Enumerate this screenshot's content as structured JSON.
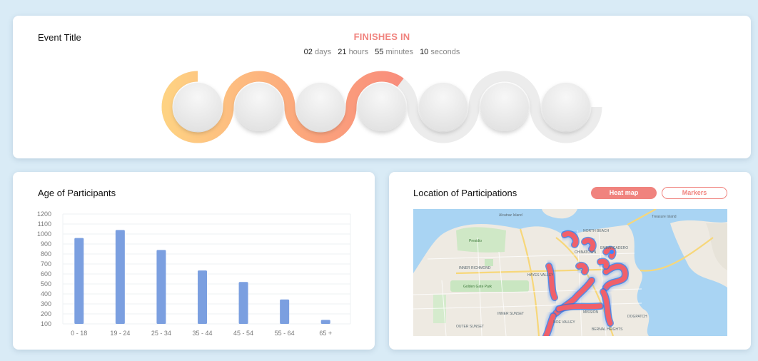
{
  "event": {
    "title": "Event Title",
    "finishes_label": "FINISHES IN",
    "countdown": [
      {
        "value": "02",
        "unit": "days"
      },
      {
        "value": "21",
        "unit": "hours"
      },
      {
        "value": "55",
        "unit": "minutes"
      },
      {
        "value": "10",
        "unit": "seconds"
      }
    ],
    "progress_fraction": 0.56,
    "colors": {
      "start": "#fed383",
      "mid": "#fca77c",
      "end": "#f7837c",
      "track": "#ececec"
    }
  },
  "age_chart": {
    "title": "Age of Participants"
  },
  "chart_data": {
    "type": "bar",
    "title": "Age of Participants",
    "xlabel": "",
    "ylabel": "",
    "categories": [
      "0 - 18",
      "19 - 24",
      "25 - 34",
      "35 - 44",
      "45 - 54",
      "55 - 64",
      "65 +"
    ],
    "values": [
      960,
      1040,
      840,
      635,
      520,
      345,
      140
    ],
    "ylim": [
      100,
      1200
    ],
    "yticks": [
      100,
      200,
      300,
      400,
      500,
      600,
      700,
      800,
      900,
      1000,
      1100,
      1200
    ],
    "grid": true,
    "bar_color": "#7b9fe0"
  },
  "location": {
    "title": "Location of Participations",
    "heatmap_label": "Heat map",
    "markers_label": "Markers",
    "accent": "#f0837e",
    "map_labels": [
      "NORTH BEACH",
      "EMBARCADERO",
      "CHINATOWN",
      "INNER RICHMOND",
      "OUTER SUNSET",
      "INNER SUNSET",
      "MISSION",
      "BERNAL HEIGHTS",
      "NOE VALLEY",
      "Golden Gate Park",
      "Presidio",
      "Treasure Island",
      "Alcatraz Island",
      "DOGPATCH",
      "HAYES VALLEY"
    ]
  }
}
